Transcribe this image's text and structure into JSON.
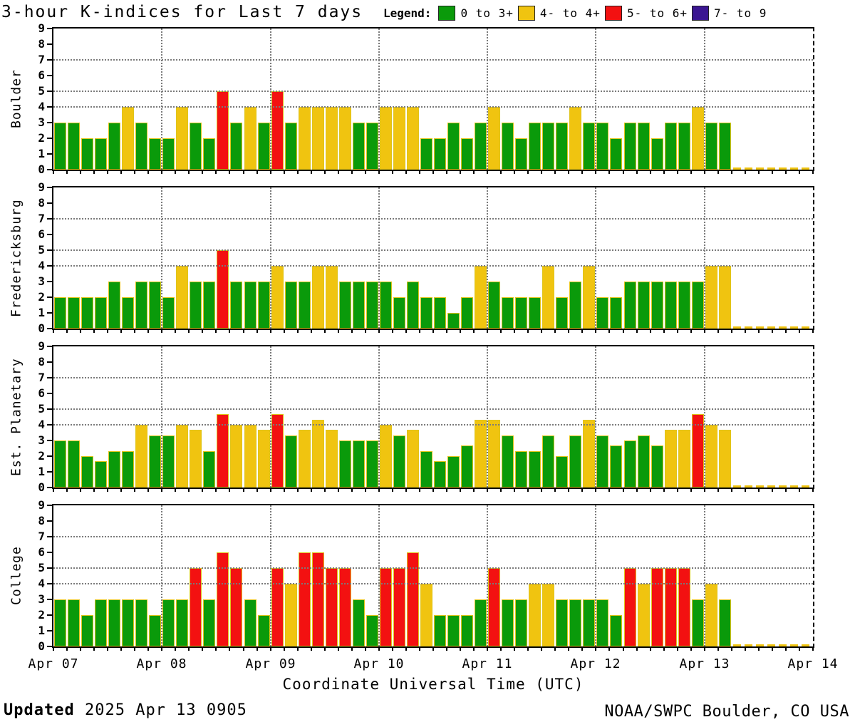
{
  "title": "3-hour K-indices for Last 7 days",
  "legend": {
    "label": "Legend:",
    "items": [
      {
        "label": "0 to 3+",
        "color": "#0a9a0a",
        "k_min": 0,
        "k_max": 3.5
      },
      {
        "label": "4- to 4+",
        "color": "#f0c410",
        "k_min": 3.5,
        "k_max": 4.5
      },
      {
        "label": "5- to 6+",
        "color": "#f31111",
        "k_min": 4.5,
        "k_max": 6.5
      },
      {
        "label": "7- to 9",
        "color": "#3b1692",
        "k_min": 6.5,
        "k_max": 9.5
      }
    ]
  },
  "y_axis": {
    "tick_labels": [
      "9",
      "8",
      "7",
      "6",
      "5",
      "4",
      "3",
      "2",
      "1",
      "0"
    ],
    "range": [
      0,
      9
    ],
    "gridlines": [
      4,
      5,
      7
    ]
  },
  "x_axis": {
    "tick_labels": [
      "Apr 07",
      "Apr 08",
      "Apr 09",
      "Apr 10",
      "Apr 11",
      "Apr 12",
      "Apr 13",
      "Apr 14"
    ],
    "title": "Coordinate Universal Time (UTC)",
    "days": 7,
    "bars_per_day": 8
  },
  "footer": {
    "updated_label": "Updated",
    "updated_value": "2025 Apr 13 0905",
    "credit": "NOAA/SWPC Boulder, CO USA"
  },
  "no_data_baseline_color": "#f0c410",
  "chart_data": [
    {
      "type": "bar",
      "station": "Boulder",
      "ylim": [
        0,
        9
      ],
      "hours_per_bar": 3,
      "values": [
        3,
        3,
        2,
        2,
        3,
        4,
        3,
        2,
        2,
        4,
        3,
        2,
        5,
        3,
        4,
        3,
        5,
        3,
        4,
        4,
        4,
        4,
        3,
        3,
        4,
        4,
        4,
        2,
        2,
        3,
        2,
        3,
        4,
        3,
        2,
        3,
        3,
        3,
        4,
        3,
        3,
        2,
        3,
        3,
        2,
        3,
        3,
        4,
        3,
        3
      ]
    },
    {
      "type": "bar",
      "station": "Fredericksburg",
      "ylim": [
        0,
        9
      ],
      "hours_per_bar": 3,
      "values": [
        2,
        2,
        2,
        2,
        3,
        2,
        3,
        3,
        2,
        4,
        3,
        3,
        5,
        3,
        3,
        3,
        4,
        3,
        3,
        4,
        4,
        3,
        3,
        3,
        3,
        2,
        3,
        2,
        2,
        1,
        2,
        4,
        3,
        2,
        2,
        2,
        4,
        2,
        3,
        4,
        2,
        2,
        3,
        3,
        3,
        3,
        3,
        3,
        4,
        4
      ]
    },
    {
      "type": "bar",
      "station": "Est. Planetary",
      "ylim": [
        0,
        9
      ],
      "hours_per_bar": 3,
      "values": [
        3,
        3,
        2,
        1.67,
        2.33,
        2.33,
        4,
        3.33,
        3.33,
        4,
        3.67,
        2.33,
        4.67,
        4,
        4,
        3.67,
        4.67,
        3.33,
        3.67,
        4.33,
        3.67,
        3,
        3,
        3,
        4,
        3.33,
        3.67,
        2.33,
        1.67,
        2,
        2.67,
        4.33,
        4.33,
        3.33,
        2.33,
        2.33,
        3.33,
        2,
        3.33,
        4.33,
        3.33,
        2.67,
        3,
        3.33,
        2.67,
        3.67,
        3.67,
        4.67,
        4,
        3.67
      ]
    },
    {
      "type": "bar",
      "station": "College",
      "ylim": [
        0,
        9
      ],
      "hours_per_bar": 3,
      "values": [
        3,
        3,
        2,
        3,
        3,
        3,
        3,
        2,
        3,
        3,
        5,
        3,
        6,
        5,
        3,
        2,
        5,
        4,
        6,
        6,
        5,
        5,
        3,
        2,
        5,
        5,
        6,
        4,
        2,
        2,
        2,
        3,
        5,
        3,
        3,
        4,
        4,
        3,
        3,
        3,
        3,
        2,
        5,
        4,
        5,
        5,
        5,
        3,
        4,
        3
      ]
    }
  ]
}
